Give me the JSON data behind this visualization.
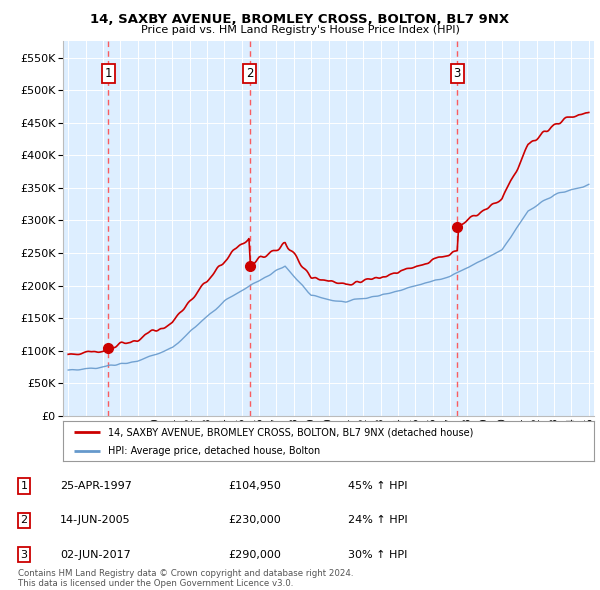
{
  "title1": "14, SAXBY AVENUE, BROMLEY CROSS, BOLTON, BL7 9NX",
  "title2": "Price paid vs. HM Land Registry's House Price Index (HPI)",
  "ylim": [
    0,
    575000
  ],
  "xlim_start": 1994.7,
  "xlim_end": 2025.3,
  "sale_dates": [
    1997.32,
    2005.45,
    2017.42
  ],
  "sale_prices": [
    104950,
    230000,
    290000
  ],
  "sale_labels": [
    "1",
    "2",
    "3"
  ],
  "legend_line1": "14, SAXBY AVENUE, BROMLEY CROSS, BOLTON, BL7 9NX (detached house)",
  "legend_line2": "HPI: Average price, detached house, Bolton",
  "table_data": [
    [
      "1",
      "25-APR-1997",
      "£104,950",
      "45% ↑ HPI"
    ],
    [
      "2",
      "14-JUN-2005",
      "£230,000",
      "24% ↑ HPI"
    ],
    [
      "3",
      "02-JUN-2017",
      "£290,000",
      "30% ↑ HPI"
    ]
  ],
  "footnote": "Contains HM Land Registry data © Crown copyright and database right 2024.\nThis data is licensed under the Open Government Licence v3.0.",
  "red_color": "#cc0000",
  "blue_color": "#6699cc",
  "bg_color": "#ddeeff",
  "dashed_color": "#ff4444"
}
